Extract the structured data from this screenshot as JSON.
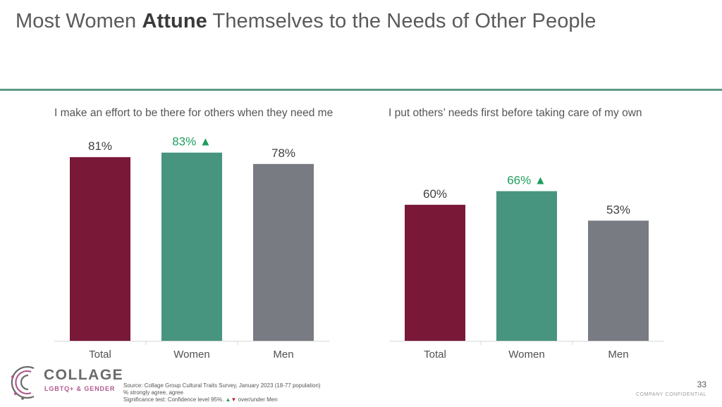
{
  "title": {
    "pre": "Most Women ",
    "bold": "Attune",
    "post": " Themselves to the Needs of Other People"
  },
  "colors": {
    "total": "#7a1838",
    "women": "#47957f",
    "men": "#787b82",
    "up": "#1e9e5e",
    "down": "#c0203a",
    "rule": "#5c9a88"
  },
  "chart_data": [
    {
      "type": "bar",
      "title": "I make an effort to be there for others when they need me",
      "categories": [
        "Total",
        "Women",
        "Men"
      ],
      "values": [
        81,
        83,
        78
      ],
      "labels": [
        "81%",
        "83%",
        "78%"
      ],
      "significant": [
        false,
        true,
        false
      ],
      "ylim": [
        0,
        100
      ]
    },
    {
      "type": "bar",
      "title": "I put others’ needs first before taking care of my own",
      "categories": [
        "Total",
        "Women",
        "Men"
      ],
      "values": [
        60,
        66,
        53
      ],
      "labels": [
        "60%",
        "66%",
        "53%"
      ],
      "significant": [
        false,
        true,
        false
      ],
      "ylim": [
        0,
        100
      ]
    }
  ],
  "footer": {
    "source": "Source: Collage Group Cultural Traits Survey, January 2023 (18-77 population)",
    "note": "% strongly agree, agree",
    "sig_prefix": "Significance test: Confidence level 95%.",
    "up_symbol": "▲",
    "down_symbol": "▼",
    "sig_suffix": " over/under Men"
  },
  "logo": {
    "word": "COLLAGE",
    "sub": "LGBTQ+ & GENDER"
  },
  "page_number": "33",
  "confidential": "COMPANY CONFIDENTIAL"
}
